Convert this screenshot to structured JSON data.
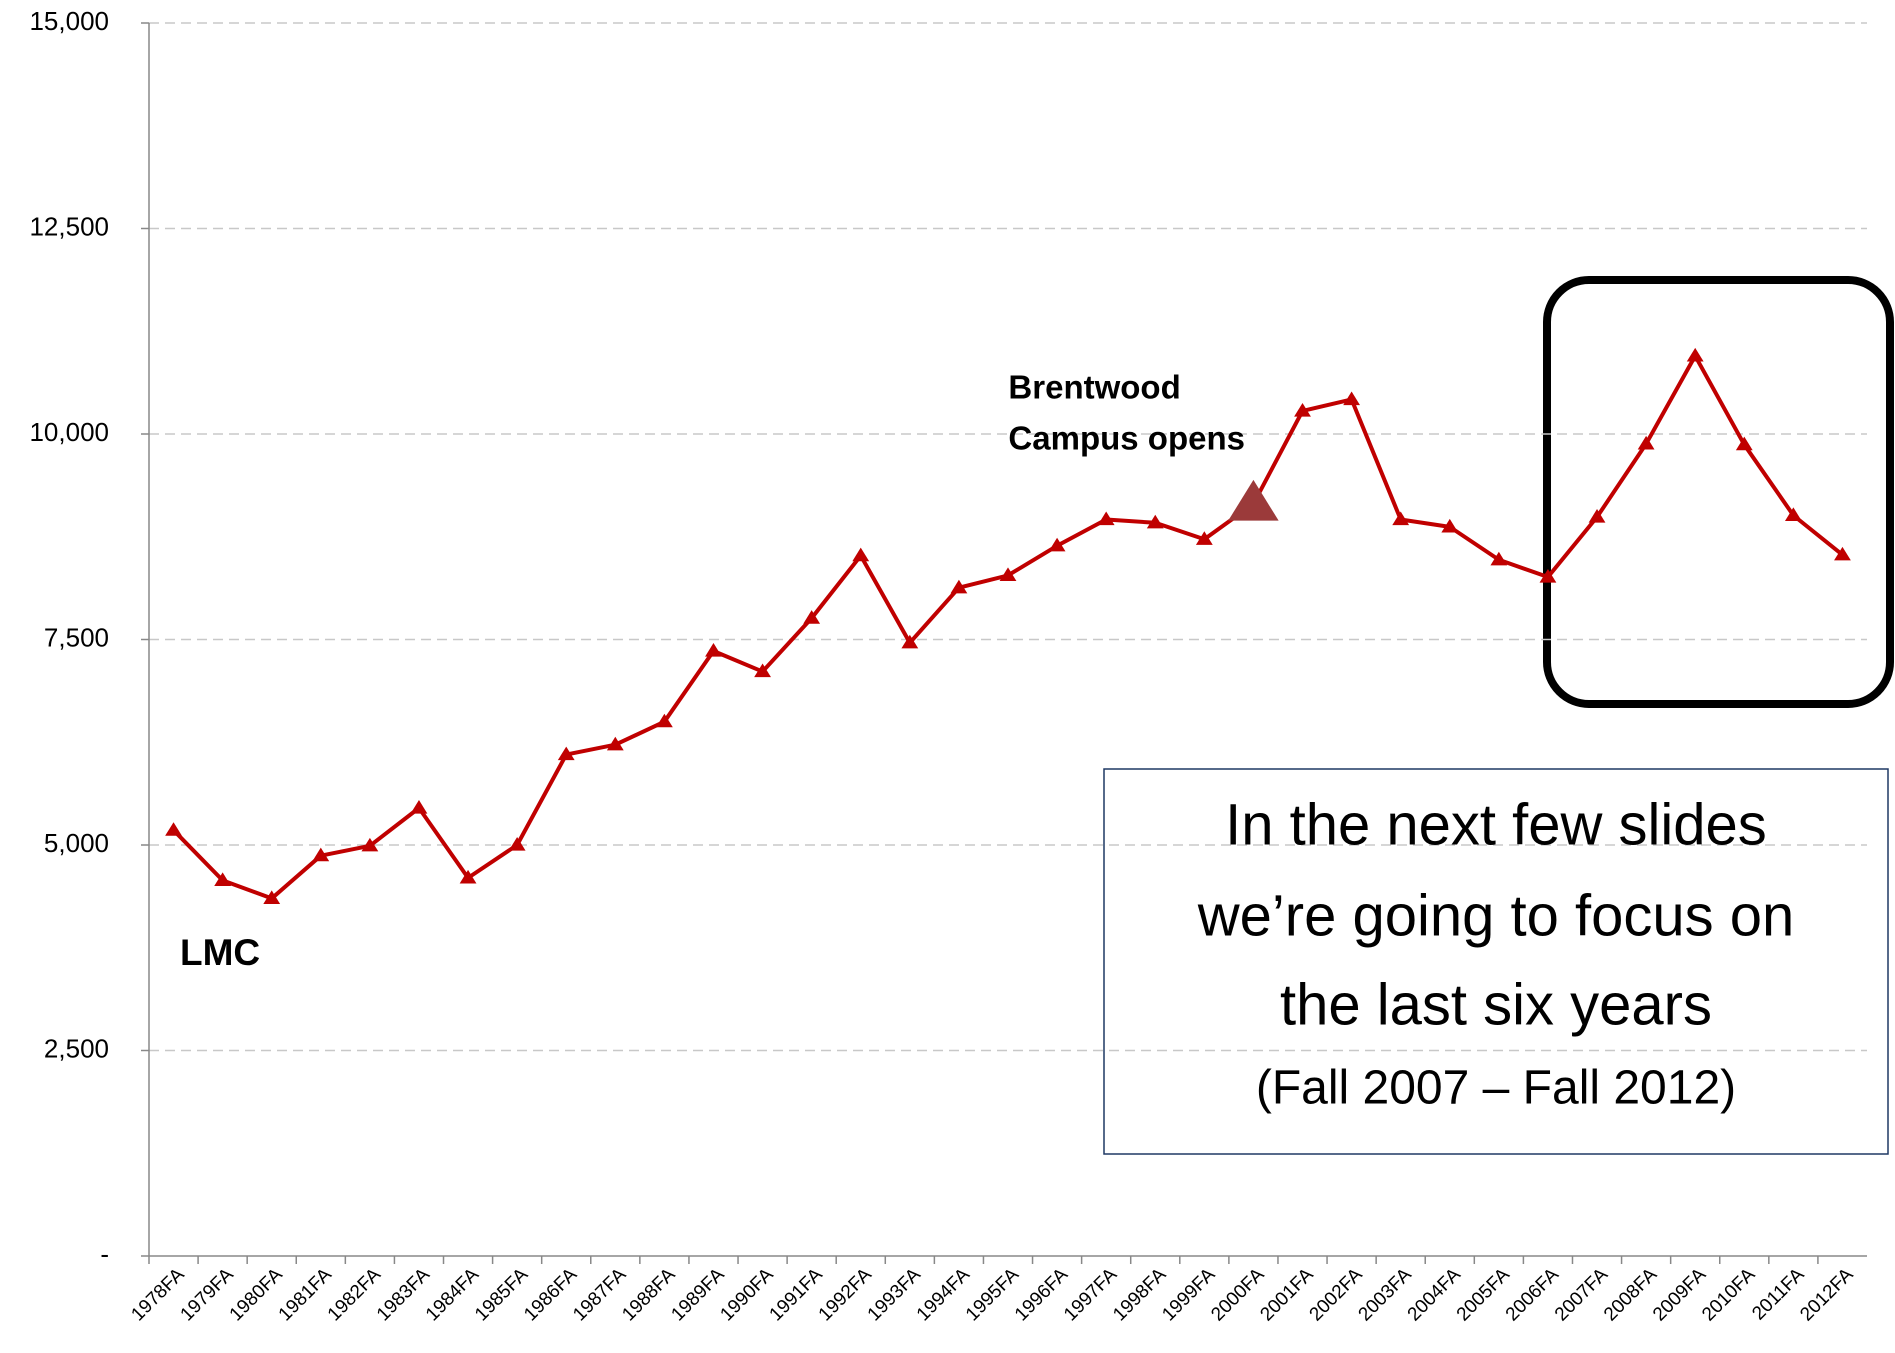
{
  "chart_data": {
    "type": "line",
    "categories": [
      "1978FA",
      "1979FA",
      "1980FA",
      "1981FA",
      "1982FA",
      "1983FA",
      "1984FA",
      "1985FA",
      "1986FA",
      "1987FA",
      "1988FA",
      "1989FA",
      "1990FA",
      "1991FA",
      "1992FA",
      "1993FA",
      "1994FA",
      "1995FA",
      "1996FA",
      "1997FA",
      "1998FA",
      "1999FA",
      "2000FA",
      "2001FA",
      "2002FA",
      "2003FA",
      "2004FA",
      "2005FA",
      "2006FA",
      "2007FA",
      "2008FA",
      "2009FA",
      "2010FA",
      "2011FA",
      "2012FA"
    ],
    "series": [
      {
        "name": "LMC",
        "color": "#c00000",
        "values": [
          5180,
          4570,
          4350,
          4870,
          4990,
          5450,
          4600,
          5000,
          6100,
          6220,
          6500,
          7360,
          7110,
          7760,
          8520,
          7460,
          8130,
          8280,
          8640,
          8960,
          8920,
          8720,
          9150,
          10280,
          10420,
          8960,
          8870,
          8470,
          8260,
          8990,
          9880,
          10950,
          9870,
          9010,
          8530
        ]
      }
    ],
    "ylim": [
      0,
      15000
    ],
    "yticks": [
      {
        "value": 0,
        "label": "-"
      },
      {
        "value": 2500,
        "label": "2,500"
      },
      {
        "value": 5000,
        "label": "5,000"
      },
      {
        "value": 7500,
        "label": "7,500"
      },
      {
        "value": 10000,
        "label": "10,000"
      },
      {
        "value": 12500,
        "label": "12,500"
      },
      {
        "value": 15000,
        "label": "15,000"
      }
    ],
    "grid": true,
    "annotations": [
      {
        "lines": [
          "Brentwood",
          "Campus opens"
        ],
        "category": "2000FA",
        "color": "#9b3a3a"
      }
    ],
    "callout": [
      "In the next few slides",
      "we’re going to focus on",
      "the last six years",
      "(Fall 2007 – Fall 2012)"
    ]
  }
}
